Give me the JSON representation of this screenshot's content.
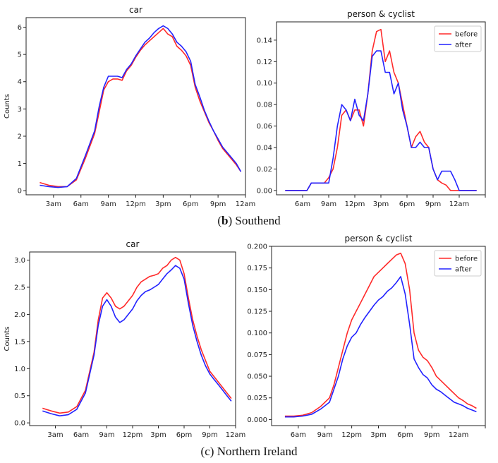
{
  "colors": {
    "before": "#ff2a2a",
    "after": "#2222ff"
  },
  "captions": [
    {
      "label": "b",
      "text": "Southend"
    },
    {
      "label": "c",
      "text": "Northern Ireland"
    }
  ],
  "chart_data": [
    {
      "type": "line",
      "title": "car",
      "xlabel": "",
      "ylabel": "Counts",
      "xlim": [
        0,
        24
      ],
      "ylim": [
        -0.15,
        6.35
      ],
      "xticks": [
        3,
        6,
        9,
        12,
        15,
        18,
        21,
        24
      ],
      "xticklabels": [
        "3am",
        "6am",
        "9am",
        "12pm",
        "3pm",
        "6pm",
        "9pm",
        "12am"
      ],
      "yticks": [
        0,
        1,
        2,
        3,
        4,
        5,
        6
      ],
      "yticklabels": [
        "0",
        "1",
        "2",
        "3",
        "4",
        "5",
        "6"
      ],
      "legend": false,
      "series": [
        {
          "name": "before",
          "x": [
            1.5,
            2.5,
            3.5,
            4.5,
            5.5,
            6.5,
            7.5,
            8,
            8.5,
            9,
            9.5,
            10,
            10.5,
            11,
            11.5,
            12,
            12.5,
            13,
            13.5,
            14,
            14.5,
            15,
            15.5,
            16,
            16.5,
            17,
            17.5,
            18,
            18.5,
            19,
            19.5,
            20,
            20.5,
            21,
            21.5,
            22,
            22.5,
            23,
            23.5
          ],
          "y": [
            0.3,
            0.2,
            0.15,
            0.15,
            0.4,
            1.2,
            2.1,
            2.9,
            3.7,
            4.0,
            4.1,
            4.1,
            4.05,
            4.4,
            4.6,
            4.9,
            5.15,
            5.35,
            5.5,
            5.65,
            5.8,
            5.95,
            5.75,
            5.65,
            5.3,
            5.15,
            4.95,
            4.6,
            3.8,
            3.3,
            2.9,
            2.5,
            2.2,
            1.85,
            1.55,
            1.35,
            1.15,
            0.95,
            0.7
          ]
        },
        {
          "name": "after",
          "x": [
            1.5,
            2.5,
            3.5,
            4.5,
            5.5,
            6.5,
            7.5,
            8,
            8.5,
            9,
            9.5,
            10,
            10.5,
            11,
            11.5,
            12,
            12.5,
            13,
            13.5,
            14,
            14.5,
            15,
            15.5,
            16,
            16.5,
            17,
            17.5,
            18,
            18.5,
            19,
            19.5,
            20,
            20.5,
            21,
            21.5,
            22,
            22.5,
            23,
            23.5
          ],
          "y": [
            0.2,
            0.15,
            0.12,
            0.15,
            0.45,
            1.3,
            2.2,
            3.1,
            3.8,
            4.2,
            4.2,
            4.2,
            4.15,
            4.45,
            4.65,
            4.95,
            5.2,
            5.45,
            5.6,
            5.8,
            5.95,
            6.05,
            5.95,
            5.75,
            5.45,
            5.3,
            5.1,
            4.75,
            3.9,
            3.45,
            2.95,
            2.55,
            2.2,
            1.9,
            1.6,
            1.4,
            1.2,
            1.0,
            0.7
          ]
        }
      ]
    },
    {
      "type": "line",
      "title": "person & cyclist",
      "xlabel": "",
      "ylabel": "",
      "xlim": [
        0,
        24
      ],
      "ylim": [
        -0.004,
        0.157
      ],
      "xticks": [
        3,
        6,
        9,
        12,
        15,
        18,
        21,
        24
      ],
      "xticklabels": [
        "6am",
        "9am",
        "12pm",
        "3pm",
        "6pm",
        "9pm",
        "12am",
        ""
      ],
      "yticks": [
        0,
        0.02,
        0.04,
        0.06,
        0.08,
        0.1,
        0.12,
        0.14
      ],
      "yticklabels": [
        "0.00",
        "0.02",
        "0.04",
        "0.06",
        "0.08",
        "0.10",
        "0.12",
        "0.14"
      ],
      "legend": true,
      "legend_position": "top-right",
      "series": [
        {
          "name": "before",
          "x": [
            1,
            3.5,
            4,
            5.5,
            6,
            6.5,
            7,
            7.5,
            8,
            8.5,
            9,
            9.5,
            10,
            10.5,
            11,
            11.5,
            12,
            12.5,
            13,
            13.5,
            14,
            14.5,
            15,
            15.5,
            16,
            16.5,
            17,
            17.5,
            18,
            18.5,
            19,
            19.5,
            20,
            20.5,
            21,
            21.5,
            22,
            22.5,
            23
          ],
          "y": [
            0,
            0,
            0.007,
            0.007,
            0.012,
            0.02,
            0.04,
            0.07,
            0.075,
            0.065,
            0.075,
            0.075,
            0.06,
            0.09,
            0.13,
            0.148,
            0.15,
            0.12,
            0.13,
            0.11,
            0.1,
            0.08,
            0.06,
            0.04,
            0.05,
            0.055,
            0.045,
            0.04,
            0.02,
            0.01,
            0.007,
            0.005,
            0,
            0,
            0,
            0,
            0,
            0,
            0
          ]
        },
        {
          "name": "after",
          "x": [
            1,
            3.5,
            4,
            5.5,
            6,
            6.5,
            7,
            7.5,
            8,
            8.5,
            9,
            9.5,
            10,
            10.5,
            11,
            11.5,
            12,
            12.5,
            13,
            13.5,
            14,
            14.5,
            15,
            15.5,
            16,
            16.5,
            17,
            17.5,
            18,
            18.5,
            19,
            19.5,
            20,
            20.5,
            21,
            21.5,
            22,
            22.5,
            23
          ],
          "y": [
            0,
            0,
            0.007,
            0.007,
            0.007,
            0.03,
            0.06,
            0.08,
            0.075,
            0.065,
            0.085,
            0.07,
            0.065,
            0.09,
            0.125,
            0.13,
            0.13,
            0.11,
            0.11,
            0.09,
            0.1,
            0.075,
            0.06,
            0.04,
            0.04,
            0.045,
            0.04,
            0.04,
            0.02,
            0.01,
            0.018,
            0.018,
            0.018,
            0.01,
            0,
            0,
            0,
            0,
            0
          ]
        }
      ]
    },
    {
      "type": "line",
      "title": "car",
      "xlabel": "",
      "ylabel": "Counts",
      "xlim": [
        0,
        24
      ],
      "ylim": [
        -0.05,
        3.15
      ],
      "xticks": [
        3,
        6,
        9,
        12,
        15,
        18,
        21,
        24
      ],
      "xticklabels": [
        "3am",
        "6am",
        "9am",
        "12pm",
        "3pm",
        "6pm",
        "9pm",
        "12am"
      ],
      "yticks": [
        0,
        0.5,
        1,
        1.5,
        2,
        2.5,
        3
      ],
      "yticklabels": [
        "0.0",
        "0.5",
        "1.0",
        "1.5",
        "2.0",
        "2.5",
        "3.0"
      ],
      "legend": false,
      "series": [
        {
          "name": "before",
          "x": [
            1.5,
            2.5,
            3.5,
            4.5,
            5.5,
            6.5,
            7.5,
            8,
            8.5,
            9,
            9.5,
            10,
            10.5,
            11,
            11.5,
            12,
            12.5,
            13,
            13.5,
            14,
            14.5,
            15,
            15.5,
            16,
            16.5,
            17,
            17.5,
            18,
            18.5,
            19,
            19.5,
            20,
            20.5,
            21,
            21.5,
            22,
            22.5,
            23,
            23.5
          ],
          "y": [
            0.27,
            0.22,
            0.18,
            0.2,
            0.3,
            0.6,
            1.3,
            1.9,
            2.3,
            2.4,
            2.3,
            2.15,
            2.1,
            2.15,
            2.25,
            2.35,
            2.5,
            2.6,
            2.65,
            2.7,
            2.72,
            2.75,
            2.85,
            2.9,
            3.0,
            3.05,
            3.0,
            2.75,
            2.3,
            1.9,
            1.6,
            1.35,
            1.15,
            0.95,
            0.85,
            0.75,
            0.65,
            0.55,
            0.45
          ]
        },
        {
          "name": "after",
          "x": [
            1.5,
            2.5,
            3.5,
            4.5,
            5.5,
            6.5,
            7.5,
            8,
            8.5,
            9,
            9.5,
            10,
            10.5,
            11,
            11.5,
            12,
            12.5,
            13,
            13.5,
            14,
            14.5,
            15,
            15.5,
            16,
            16.5,
            17,
            17.5,
            18,
            18.5,
            19,
            19.5,
            20,
            20.5,
            21,
            21.5,
            22,
            22.5,
            23,
            23.5
          ],
          "y": [
            0.22,
            0.17,
            0.13,
            0.15,
            0.25,
            0.55,
            1.25,
            1.8,
            2.15,
            2.27,
            2.15,
            1.95,
            1.85,
            1.9,
            2.0,
            2.1,
            2.25,
            2.35,
            2.42,
            2.45,
            2.5,
            2.55,
            2.65,
            2.75,
            2.82,
            2.9,
            2.85,
            2.65,
            2.2,
            1.8,
            1.5,
            1.25,
            1.05,
            0.9,
            0.8,
            0.7,
            0.6,
            0.5,
            0.4
          ]
        }
      ]
    },
    {
      "type": "line",
      "title": "person & cyclist",
      "xlabel": "",
      "ylabel": "",
      "xlim": [
        0,
        24
      ],
      "ylim": [
        -0.007,
        0.2
      ],
      "xticks": [
        3,
        6,
        9,
        12,
        15,
        18,
        21,
        24
      ],
      "xticklabels": [
        "6am",
        "9am",
        "12pm",
        "3pm",
        "6pm",
        "9pm",
        "12am",
        ""
      ],
      "yticks": [
        0,
        0.025,
        0.05,
        0.075,
        0.1,
        0.125,
        0.15,
        0.175,
        0.2
      ],
      "yticklabels": [
        "0.000",
        "0.025",
        "0.050",
        "0.075",
        "0.100",
        "0.125",
        "0.150",
        "0.175",
        "0.200"
      ],
      "legend": true,
      "legend_position": "top-right",
      "series": [
        {
          "name": "before",
          "x": [
            1.5,
            2.5,
            3.5,
            4.5,
            5.5,
            6.5,
            7,
            7.5,
            8,
            8.5,
            9,
            9.5,
            10,
            10.5,
            11,
            11.5,
            12,
            12.5,
            13,
            13.5,
            14,
            14.5,
            15,
            15.5,
            16,
            16.5,
            17,
            17.5,
            18,
            18.5,
            19,
            19.5,
            20,
            20.5,
            21,
            21.5,
            22,
            22.5,
            23
          ],
          "y": [
            0.004,
            0.004,
            0.005,
            0.008,
            0.015,
            0.025,
            0.04,
            0.06,
            0.08,
            0.1,
            0.115,
            0.125,
            0.135,
            0.145,
            0.155,
            0.165,
            0.17,
            0.175,
            0.18,
            0.185,
            0.19,
            0.192,
            0.18,
            0.15,
            0.1,
            0.08,
            0.072,
            0.068,
            0.06,
            0.05,
            0.045,
            0.04,
            0.035,
            0.03,
            0.025,
            0.022,
            0.018,
            0.016,
            0.013
          ]
        },
        {
          "name": "after",
          "x": [
            1.5,
            2.5,
            3.5,
            4.5,
            5.5,
            6.5,
            7,
            7.5,
            8,
            8.5,
            9,
            9.5,
            10,
            10.5,
            11,
            11.5,
            12,
            12.5,
            13,
            13.5,
            14,
            14.5,
            15,
            15.5,
            16,
            16.5,
            17,
            17.5,
            18,
            18.5,
            19,
            19.5,
            20,
            20.5,
            21,
            21.5,
            22,
            22.5,
            23
          ],
          "y": [
            0.003,
            0.003,
            0.004,
            0.006,
            0.012,
            0.02,
            0.035,
            0.05,
            0.07,
            0.085,
            0.095,
            0.1,
            0.11,
            0.118,
            0.125,
            0.132,
            0.138,
            0.142,
            0.148,
            0.152,
            0.158,
            0.165,
            0.145,
            0.11,
            0.07,
            0.06,
            0.052,
            0.048,
            0.04,
            0.035,
            0.032,
            0.028,
            0.024,
            0.02,
            0.018,
            0.016,
            0.013,
            0.011,
            0.009
          ]
        }
      ]
    }
  ]
}
